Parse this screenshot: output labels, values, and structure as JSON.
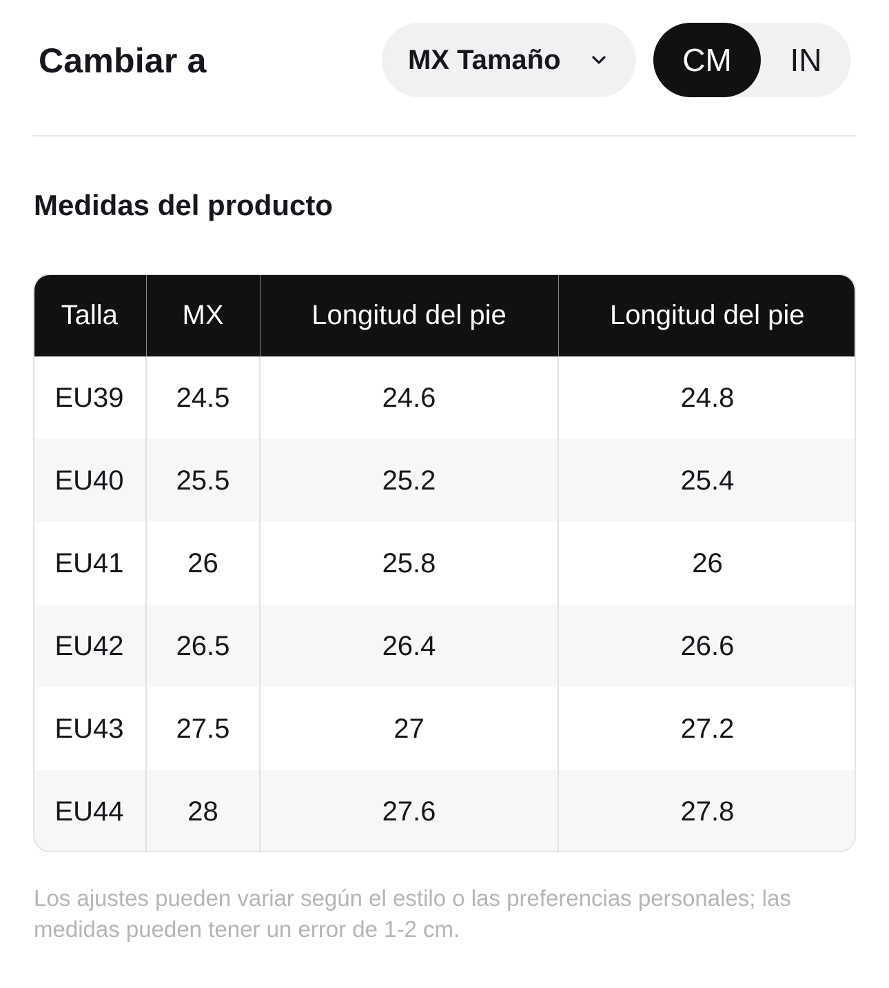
{
  "header": {
    "switch_label": "Cambiar a",
    "size_select": {
      "selected": "MX Tamaño",
      "icon": "chevron-down-icon"
    },
    "unit_toggle": {
      "options": [
        "CM",
        "IN"
      ],
      "active": "CM"
    }
  },
  "section": {
    "title": "Medidas del producto"
  },
  "table": {
    "headers": [
      "Talla",
      "MX",
      "Longitud del pie",
      "Longitud del pie"
    ],
    "rows": [
      [
        "EU39",
        "24.5",
        "24.6",
        "24.8"
      ],
      [
        "EU40",
        "25.5",
        "25.2",
        "25.4"
      ],
      [
        "EU41",
        "26",
        "25.8",
        "26"
      ],
      [
        "EU42",
        "26.5",
        "26.4",
        "26.6"
      ],
      [
        "EU43",
        "27.5",
        "27",
        "27.2"
      ],
      [
        "EU44",
        "28",
        "27.6",
        "27.8"
      ]
    ]
  },
  "footer": {
    "note": "Los ajustes pueden variar según el estilo o las preferencias personales; las medidas pueden tener un error de 1-2 cm."
  },
  "colors": {
    "header_bg": "#111111",
    "active_toggle_bg": "#111111",
    "pill_bg": "#f1f1f3",
    "stripe_bg": "#f7f7f8",
    "note_text": "#b5b5b9"
  }
}
